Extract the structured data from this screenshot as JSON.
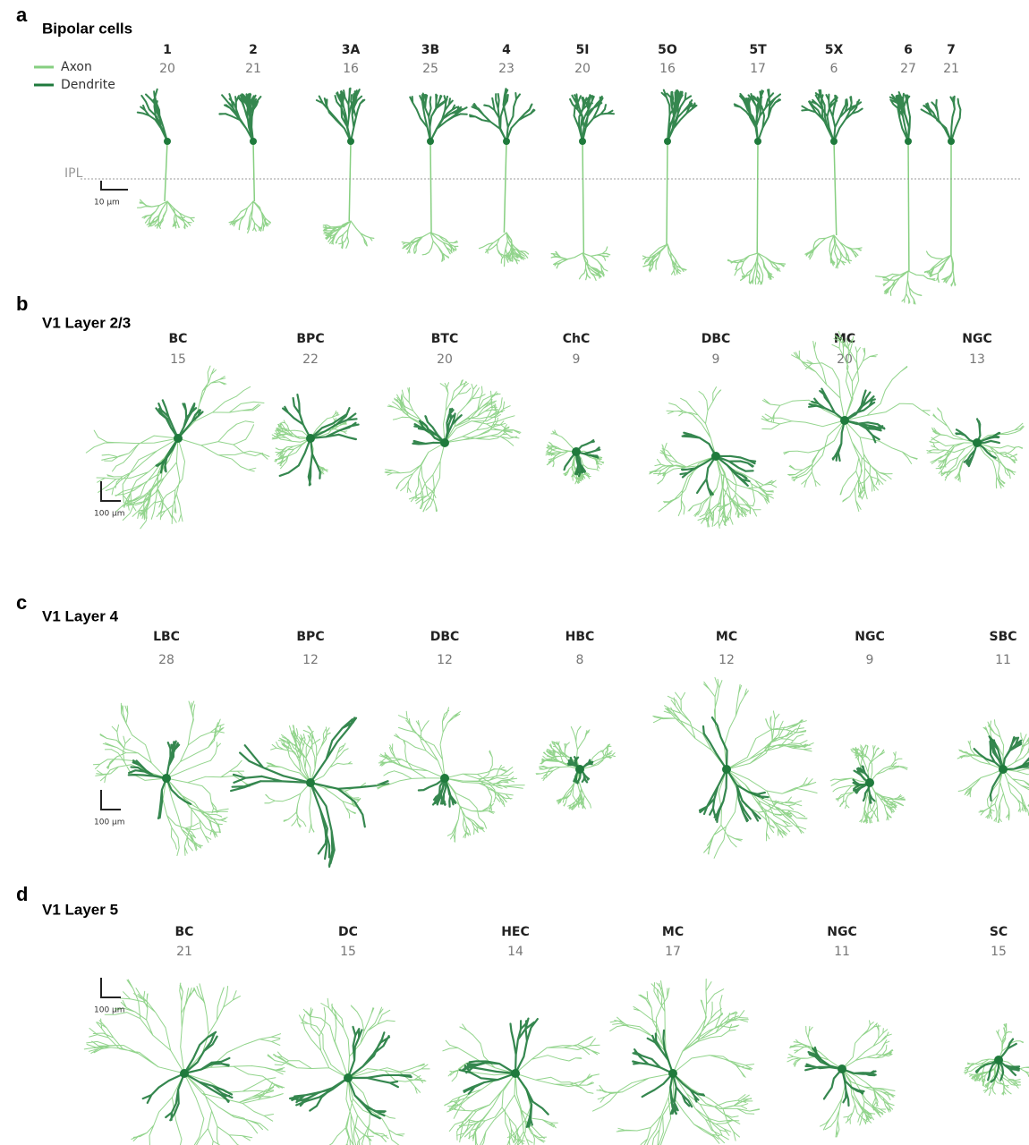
{
  "panels": [
    {
      "letter": "a",
      "title": "Bipolar cells",
      "legend": [
        {
          "label": "Axon",
          "color": "#86cf80"
        },
        {
          "label": "Dendrite",
          "color": "#1f7a3c"
        }
      ],
      "layer_label": "IPL",
      "scale_label": "10 μm",
      "cells": [
        {
          "name": "1",
          "count": 20
        },
        {
          "name": "2",
          "count": 21
        },
        {
          "name": "3A",
          "count": 16
        },
        {
          "name": "3B",
          "count": 25
        },
        {
          "name": "4",
          "count": 23
        },
        {
          "name": "5I",
          "count": 20
        },
        {
          "name": "5O",
          "count": 16
        },
        {
          "name": "5T",
          "count": 17
        },
        {
          "name": "5X",
          "count": 6
        },
        {
          "name": "6",
          "count": 27
        },
        {
          "name": "7",
          "count": 21
        }
      ]
    },
    {
      "letter": "b",
      "title": "V1 Layer 2/3",
      "scale_label": "100 μm",
      "cells": [
        {
          "name": "BC",
          "count": 15
        },
        {
          "name": "BPC",
          "count": 22
        },
        {
          "name": "BTC",
          "count": 20
        },
        {
          "name": "ChC",
          "count": 9
        },
        {
          "name": "DBC",
          "count": 9
        },
        {
          "name": "MC",
          "count": 20
        },
        {
          "name": "NGC",
          "count": 13
        }
      ]
    },
    {
      "letter": "c",
      "title": "V1 Layer 4",
      "scale_label": "100 μm",
      "cells": [
        {
          "name": "LBC",
          "count": 28
        },
        {
          "name": "BPC",
          "count": 12
        },
        {
          "name": "DBC",
          "count": 12
        },
        {
          "name": "HBC",
          "count": 8
        },
        {
          "name": "MC",
          "count": 12
        },
        {
          "name": "NGC",
          "count": 9
        },
        {
          "name": "SBC",
          "count": 11
        }
      ]
    },
    {
      "letter": "d",
      "title": "V1 Layer 5",
      "scale_label": "100 μm",
      "cells": [
        {
          "name": "BC",
          "count": 21
        },
        {
          "name": "DC",
          "count": 15
        },
        {
          "name": "HEC",
          "count": 14
        },
        {
          "name": "MC",
          "count": 17
        },
        {
          "name": "NGC",
          "count": 11
        },
        {
          "name": "SC",
          "count": 15
        }
      ]
    }
  ]
}
